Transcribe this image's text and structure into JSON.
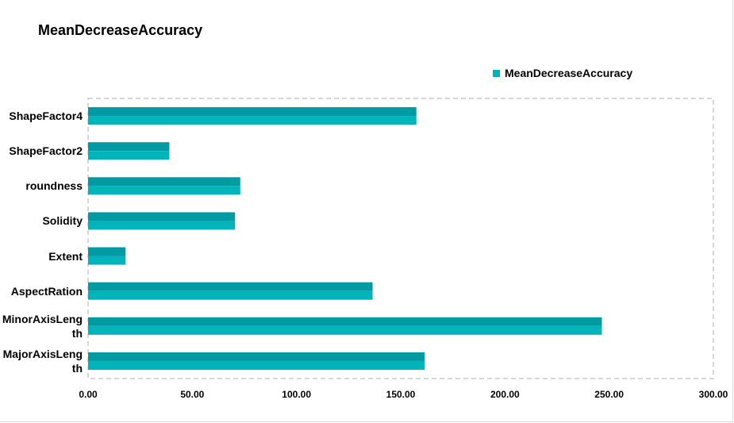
{
  "chart_data": {
    "type": "bar",
    "orientation": "horizontal",
    "title": "MeanDecreaseAccuracy",
    "legend": {
      "entries": [
        "MeanDecreaseAccuracy"
      ],
      "position": "top-right"
    },
    "categories": [
      "ShapeFactor4",
      "ShapeFactor2",
      "roundness",
      "Solidity",
      "Extent",
      "AspectRation",
      "MinorAxisLength",
      "MajorAxisLength"
    ],
    "series": [
      {
        "name": "MeanDecreaseAccuracy",
        "values": [
          157.5,
          39,
          73,
          70.5,
          18,
          136.5,
          246.5,
          161.5
        ]
      }
    ],
    "xlim": [
      0,
      300
    ],
    "x_ticks": [
      "0.00",
      "50.00",
      "100.00",
      "150.00",
      "200.00",
      "250.00",
      "300.00"
    ],
    "grid": false,
    "colors": {
      "bar": "#00b4bc",
      "bar_shade": "#009aa3",
      "plot_border": "#c8c8c8"
    }
  }
}
